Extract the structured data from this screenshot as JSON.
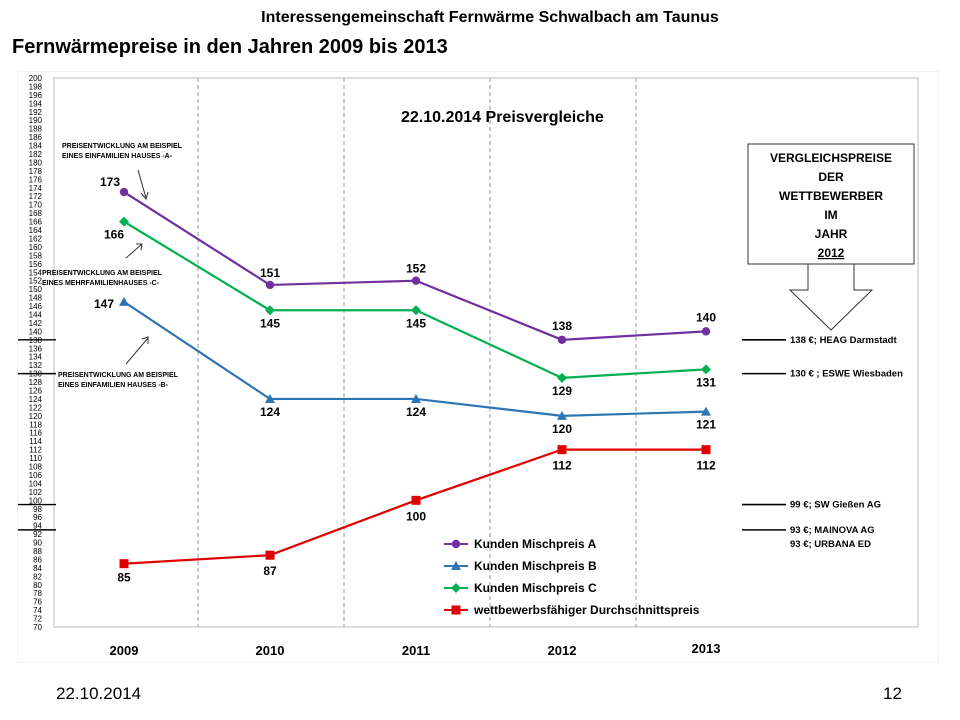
{
  "header": {
    "org_title": "Interessengemeinschaft Fernwärme Schwalbach am Taunus",
    "page_title": "Fernwärmepreise in den Jahren 2009 bis 2013"
  },
  "footer": {
    "date": "22.10.2014",
    "page_number": "12"
  },
  "chart_data": {
    "type": "line",
    "title": "22.10.2014  Preisvergleiche",
    "categories": [
      "2009",
      "2010",
      "2011",
      "2012",
      "2013"
    ],
    "ylim": [
      70,
      200
    ],
    "ytick_step": 2,
    "grid": "vertical dashed",
    "legend_position": "bottom-right",
    "series": [
      {
        "name": "Kunden Mischpreis   A",
        "values": [
          173,
          151,
          152,
          138,
          140
        ],
        "color": "#7030a0",
        "marker": "circle"
      },
      {
        "name": "Kunden Mischpreis   B",
        "values": [
          147,
          124,
          124,
          120,
          121
        ],
        "color": "#2e75b6",
        "marker": "triangle"
      },
      {
        "name": "Kunden Mischpreis   C",
        "values": [
          166,
          145,
          145,
          129,
          131
        ],
        "color": "#00b050",
        "marker": "diamond"
      },
      {
        "name": "wettbewerbsfähiger Durchschnittspreis",
        "values": [
          85,
          87,
          100,
          112,
          112
        ],
        "color": "#e00000",
        "marker": "square"
      }
    ],
    "annotations": {
      "house_a": [
        "PREISENTWICKLUNG AM BEISPIEL",
        "EINES EINFAMILIEN HAUSES -A-"
      ],
      "house_c": [
        "PREISENTWICKLUNG AM BEISPIEL",
        "EINES MEHRFAMILIENHAUSES -C-"
      ],
      "house_b": [
        "PREISENTWICKLUNG AM BEISPIEL",
        "EINES EINFAMILIEN HAUSES -B-"
      ],
      "comparison_box": [
        "VERGLEICHSPREISE",
        "DER",
        "WETTBEWERBER",
        "IM",
        "JAHR",
        "2012"
      ]
    },
    "competitors": [
      {
        "value": 138,
        "lines": [
          "138 €; HEAG Darmstadt"
        ]
      },
      {
        "value": 130,
        "lines": [
          "130 € ; ESWE Wiesbaden"
        ]
      },
      {
        "value": 99,
        "lines": [
          "99 €; SW Gießen AG"
        ]
      },
      {
        "value": 93,
        "lines": [
          "93 €; MAINOVA AG",
          "93 €; URBANA ED"
        ]
      }
    ]
  }
}
